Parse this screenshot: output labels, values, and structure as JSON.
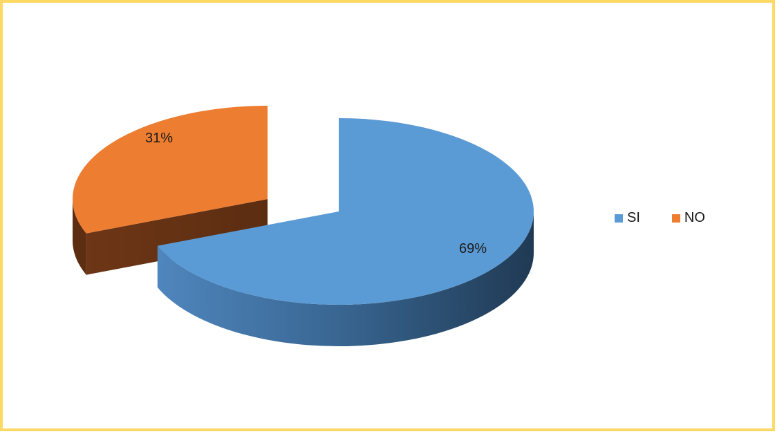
{
  "chart_data": {
    "type": "pie",
    "style": "3d-exploded",
    "categories": [
      "SI",
      "NO"
    ],
    "values": [
      69,
      31
    ],
    "labels": [
      "69%",
      "31%"
    ],
    "colors": {
      "SI": "#5b9bd5",
      "NO": "#ed7d31"
    },
    "legend_placement": "right",
    "border_color": "#ffd966"
  }
}
